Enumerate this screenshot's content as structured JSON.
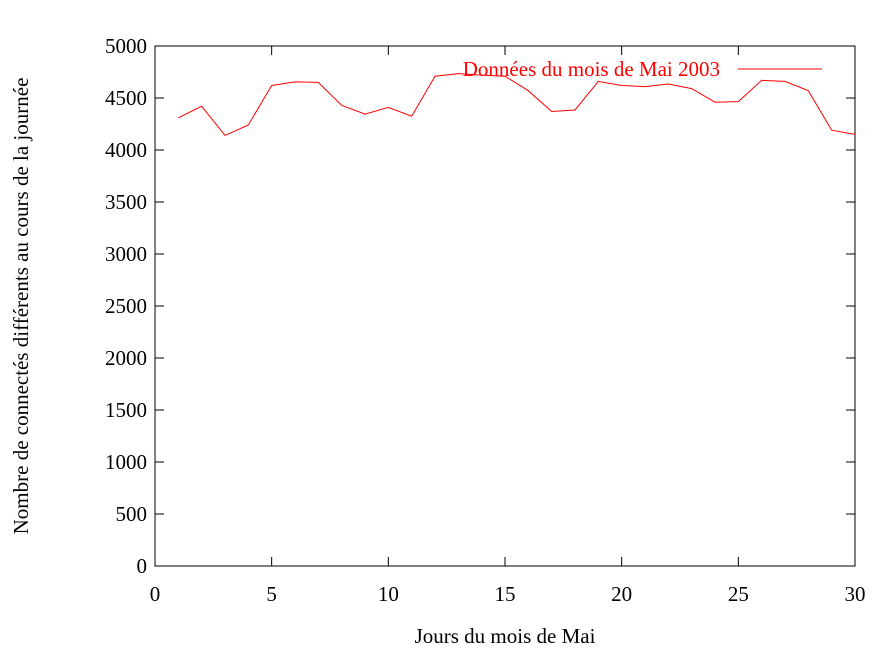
{
  "chart_data": {
    "type": "line",
    "title": "",
    "xlabel": "Jours du mois de Mai",
    "ylabel": "Nombre de connectés différents au cours de la journée",
    "xlim": [
      0,
      30
    ],
    "ylim": [
      0,
      5000
    ],
    "xticks": [
      0,
      5,
      10,
      15,
      20,
      25,
      30
    ],
    "yticks": [
      0,
      500,
      1000,
      1500,
      2000,
      2500,
      3000,
      3500,
      4000,
      4500,
      5000
    ],
    "grid": false,
    "legend_position": "top-right",
    "series": [
      {
        "name": "Données du mois de Mai 2003",
        "color": "#ff0000",
        "x": [
          1,
          2,
          3,
          4,
          5,
          6,
          7,
          8,
          9,
          10,
          11,
          12,
          13,
          14,
          15,
          16,
          17,
          18,
          19,
          20,
          21,
          22,
          23,
          24,
          25,
          26,
          27,
          28,
          29,
          30
        ],
        "y": [
          4310,
          4420,
          4140,
          4240,
          4620,
          4655,
          4650,
          4430,
          4345,
          4410,
          4325,
          4710,
          4735,
          4720,
          4710,
          4570,
          4370,
          4385,
          4660,
          4620,
          4610,
          4635,
          4590,
          4460,
          4465,
          4670,
          4660,
          4570,
          4190,
          4150
        ]
      }
    ]
  }
}
